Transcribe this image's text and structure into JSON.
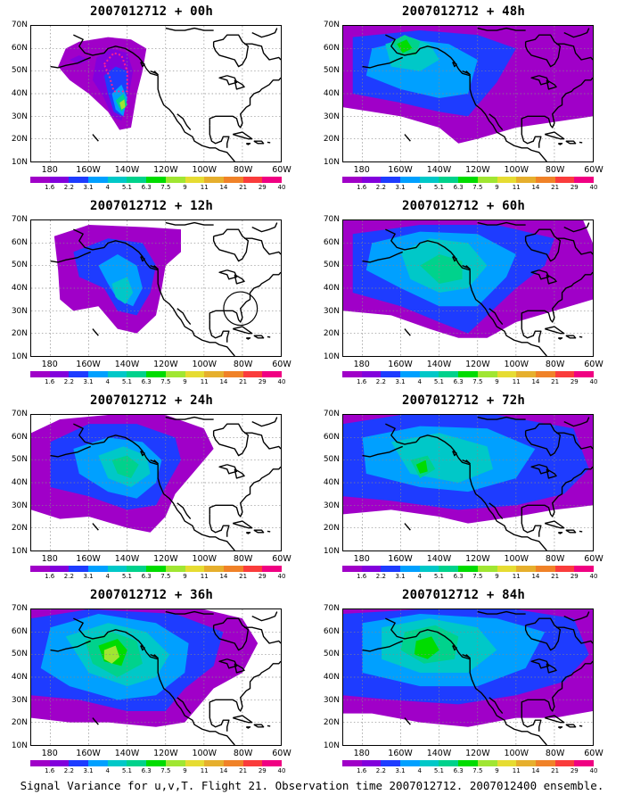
{
  "panels": [
    {
      "title": "2007012712 + 00h"
    },
    {
      "title": "2007012712 + 48h"
    },
    {
      "title": "2007012712 + 12h"
    },
    {
      "title": "2007012712 + 60h"
    },
    {
      "title": "2007012712 + 24h"
    },
    {
      "title": "2007012712 + 72h"
    },
    {
      "title": "2007012712 + 36h"
    },
    {
      "title": "2007012712 + 84h"
    }
  ],
  "lat_labels": [
    "70N",
    "60N",
    "50N",
    "40N",
    "30N",
    "20N",
    "10N"
  ],
  "lon_labels": [
    "180",
    "160W",
    "140W",
    "120W",
    "100W",
    "80W",
    "60W"
  ],
  "colorbar": {
    "labels": [
      "1.6",
      "2.2",
      "3.1",
      "4",
      "5.1",
      "6.3",
      "7.5",
      "9",
      "11",
      "14",
      "21",
      "29",
      "40"
    ],
    "colors": [
      "#a000c8",
      "#8200dc",
      "#1e3cff",
      "#00a0ff",
      "#00c8c8",
      "#00d28c",
      "#00dc00",
      "#a0e632",
      "#e6dc32",
      "#e6af2d",
      "#f08228",
      "#fa3c3c",
      "#f00082"
    ]
  },
  "footer": "Signal Variance for u,v,T. Flight 21. Observation time 2007012712. 2007012400 ensemble."
}
